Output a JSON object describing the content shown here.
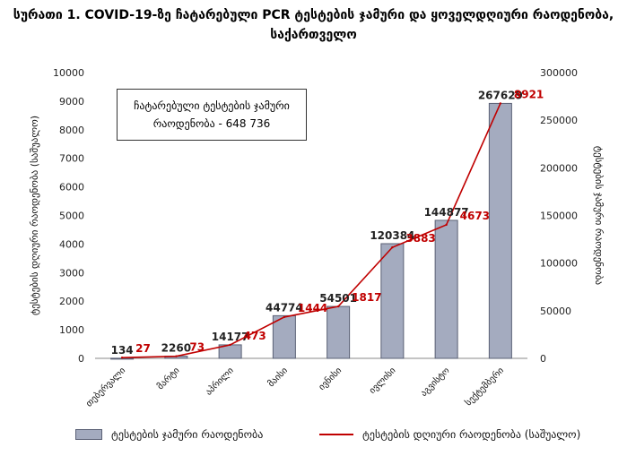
{
  "title": {
    "line1": "სურათი 1. COVID-19-ზე ჩატარებული PCR ტესტების ჯამური და ყოველდღიური რაოდენობა,",
    "line2": "საქართველო"
  },
  "annotation": {
    "line1": "ჩატარებული ტესტების ჯამური",
    "line2": "რაოდენობა - 648 736"
  },
  "colors": {
    "bar": "#a4abbf",
    "bar_edge": "#5a6075",
    "line": "#c00000",
    "axis": "#888888"
  },
  "chart_data": {
    "type": "bar",
    "categories": [
      "თებერვალი",
      "მარტი",
      "აპრილი",
      "მაისი",
      "ივნისი",
      "ივლისი",
      "აგვისტო",
      "სექტემბერი"
    ],
    "series": [
      {
        "name": "ტესტების ჯამური რაოდენობა",
        "type": "bar",
        "axis": "right",
        "values": [
          134,
          2260,
          14177,
          44774,
          54501,
          120384,
          144877,
          267629
        ]
      },
      {
        "name": "ტესტების დღიური რაოდენობა (საშუალო)",
        "type": "line",
        "axis": "left",
        "values": [
          27,
          73,
          473,
          1444,
          1817,
          3883,
          4673,
          8921
        ]
      }
    ],
    "y_left": {
      "label": "ტესტების დღიური რაოდენობა (საშუალო)",
      "lim": [
        0,
        10000
      ],
      "ticks": [
        "0",
        "1000",
        "2000",
        "3000",
        "4000",
        "5000",
        "6000",
        "7000",
        "8000",
        "9000",
        "10000"
      ]
    },
    "y_right": {
      "label": "ტესტების ჯამური რაოდენობა",
      "lim": [
        0,
        300000
      ],
      "ticks": [
        "0",
        "50000",
        "100000",
        "150000",
        "200000",
        "250000",
        "300000"
      ]
    },
    "grid": false,
    "legend": "bottom"
  }
}
